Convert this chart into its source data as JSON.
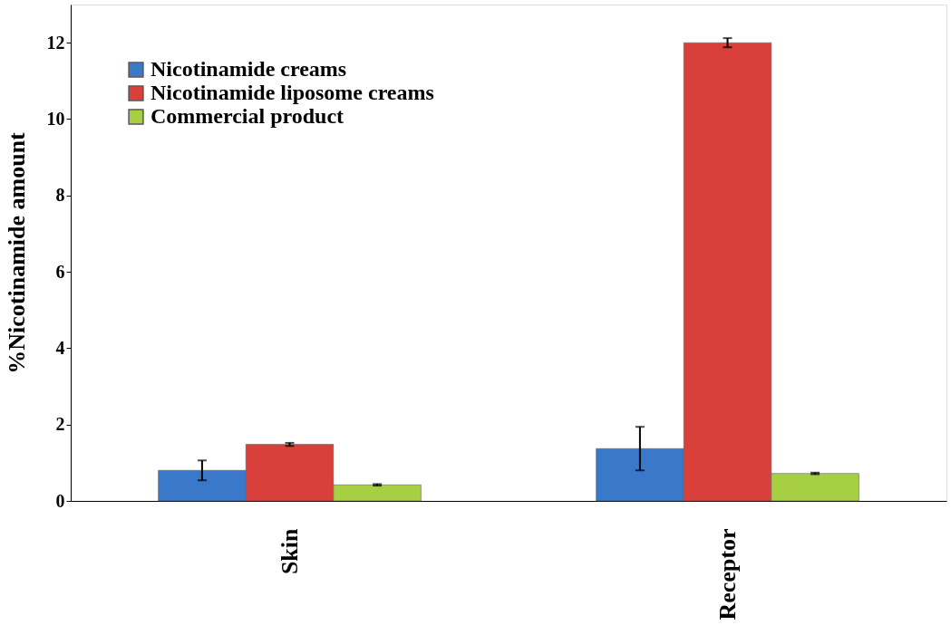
{
  "chart_data": {
    "type": "bar",
    "ylabel": "%Nicotinamide amount",
    "categories": [
      "Skin",
      "Receptor"
    ],
    "series": [
      {
        "name": "Nicotinamide creams",
        "color": "#3a78c9",
        "values": [
          0.8,
          1.37
        ],
        "errors": [
          0.26,
          0.57
        ]
      },
      {
        "name": "Nicotinamide liposome creams",
        "color": "#d9403b",
        "values": [
          1.48,
          12.0
        ],
        "errors": [
          0.04,
          0.12
        ]
      },
      {
        "name": "Commercial product",
        "color": "#a6cf44",
        "values": [
          0.42,
          0.72
        ],
        "errors": [
          0.02,
          0.02
        ]
      }
    ],
    "ylim": [
      0,
      13
    ],
    "yticks": [
      0,
      2,
      4,
      6,
      8,
      10,
      12
    ],
    "grid": false,
    "legend": "top left"
  }
}
